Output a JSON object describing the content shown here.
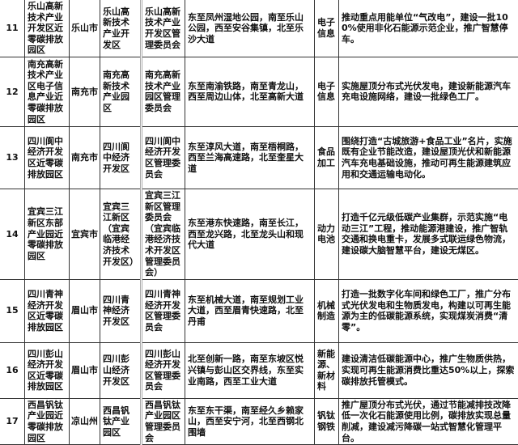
{
  "rows": [
    {
      "no": "11",
      "park": "乐山高新技术产业开发区近零碳排放园区",
      "city": "乐山市",
      "carrier": "乐山高新技术产业开发区",
      "admin": "乐山高新技术产业开发区管理委员会",
      "boundary": "东至凤州湿地公园，南至乐山公园，西至安谷集镇，北至乐沙大道",
      "industry": "电子信息",
      "measures": "推动重点用能单位“气改电”，建设一批100%使用非化石能源示范企业，推广智慧停车。"
    },
    {
      "no": "12",
      "park": "南充高新技术产业区电子信息产业近零碳排放园区",
      "city": "南充市",
      "carrier": "南充高新技术产业园区",
      "admin": "南充高新技术产业园区管理委员会",
      "boundary": "东至南渝铁路，南至青龙山，西至周边山体，北至高新大道",
      "industry": "电子信息",
      "measures": "实施屋顶分布式光伏发电，建设新能源汽车充电设施网络，建设一批绿色工厂。"
    },
    {
      "no": "13",
      "park": "四川阆中经济开发区近零碳排放园区",
      "city": "南充市",
      "carrier": "四川阆中经济开发区",
      "admin": "四川阆中经济开发区管理委员会",
      "boundary": "东至淳风大道，南至梧桐路，西至兰海高速路，北至奎星大道",
      "industry": "食品加工",
      "measures": "围绕打造“古城旅游+食品工业”名片，实施既有企业节能改造，建设屋顶光伏和新能源汽车充电基础设施，推动可再生能源建筑应用和交通运输电动化。"
    },
    {
      "no": "14",
      "park": "宜宾三江新区东部产业园近零碳排放园区",
      "city": "宜宾市",
      "carrier": "宜宾三江新区（宜宾临港经济技术开发区）",
      "admin": "宜宾三江新区管理委员会（宜宾临港经济技术开发区管理委员会）",
      "boundary": "东至港东快速路，南至长江，西至龙兴路，北至龙头山和现代大道",
      "industry": "动力电池",
      "measures": "打造千亿元级低碳产业集群，示范实施“电动三江”工程，推动能源港建设，推广智轨交通和换电重卡，发展多式联运绿色物流，建设碳大脑智慧平台，建设无煤区。"
    },
    {
      "no": "15",
      "park": "四川青神经济开发区近零碳排放园区",
      "city": "眉山市",
      "carrier": "四川青神经济开发区",
      "admin": "四川青神经济开发区管理委员会",
      "boundary": "东至机械大道，南至规划工业大道，西至眉青快速路，北至丹甫",
      "industry": "机械制造",
      "measures": "打造一批数字化车间和绿色工厂，推广分布式光伏发电和生物质发电，构建以可再生能源为主的低碳能源系统，实现煤炭消费“清零”。"
    },
    {
      "no": "16",
      "park": "四川彭山经济开发区近零碳排放园区",
      "city": "眉山市",
      "carrier": "四川彭山经济开发区",
      "admin": "四川彭山经济开发区管理委员会",
      "boundary": "北至创新一路，南至东坡区悦兴镇与彭山区交界线，东至实业南路，西至工业大道",
      "industry": "新能源、新材料",
      "measures": "建设清洁低碳能源中心，推广生物质供热，实现可再生能源消费比重达50%以上，探索碳排放托管模式。"
    },
    {
      "no": "17",
      "park": "西昌钒钛产业园近零碳排放园区",
      "city": "凉山州",
      "carrier": "西昌钒钛产业园区",
      "admin": "西昌钒钛产业园区管理委员会",
      "boundary": "东至东干渠，南至经久乡赖家山，西至安宁河，北至西钢北围墙",
      "industry": "钒钛钢铁",
      "measures": "推广屋顶分布式光伏，通过节能减排技改降低一次化石能源使用比例，碳排放实现总量削减，建设减污降碳一站式智慧化管理平台。"
    }
  ]
}
